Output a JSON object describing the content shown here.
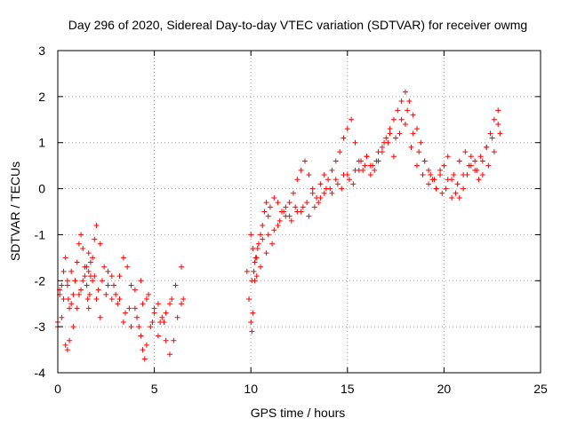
{
  "chart_data": {
    "type": "scatter",
    "title": "Day 296 of 2020, Sidereal Day-to-day VTEC variation (SDTVAR) for receiver owmg",
    "xlabel": "GPS time / hours",
    "ylabel": "SDTVAR / TECUs",
    "xlim": [
      0,
      25
    ],
    "ylim": [
      -4,
      3
    ],
    "xticks": [
      0,
      5,
      10,
      15,
      20,
      25
    ],
    "yticks": [
      -4,
      -3,
      -2,
      -1,
      0,
      1,
      2,
      3
    ],
    "grid": true,
    "marker": "+",
    "color": "#ff0000",
    "series": [
      {
        "name": "SDTVAR",
        "x": [
          0.0,
          0.1,
          0.2,
          0.3,
          0.4,
          0.5,
          0.55,
          0.6,
          0.7,
          0.8,
          0.9,
          1.0,
          1.1,
          1.2,
          1.3,
          1.4,
          1.5,
          1.55,
          1.6,
          1.65,
          1.7,
          1.8,
          1.9,
          2.0,
          2.2,
          2.4,
          2.6,
          2.8,
          3.0,
          3.2,
          3.4,
          3.6,
          3.8,
          4.0,
          4.2,
          4.3,
          4.4,
          4.5,
          4.6,
          4.8,
          5.0,
          5.2,
          5.4,
          5.6,
          5.8,
          6.0,
          6.2,
          6.4,
          6.5,
          0.0,
          0.2,
          0.4,
          0.5,
          0.6,
          0.8,
          1.0,
          1.2,
          1.4,
          1.6,
          1.8,
          2.0,
          2.2,
          2.5,
          2.8,
          3.1,
          3.4,
          3.7,
          4.0,
          4.3,
          4.6,
          4.9,
          5.2,
          5.5,
          5.8,
          6.1,
          6.4,
          0.1,
          0.3,
          0.5,
          0.7,
          0.9,
          1.1,
          1.3,
          1.5,
          1.6,
          1.7,
          1.9,
          2.1,
          2.3,
          2.6,
          2.9,
          3.2,
          3.5,
          3.8,
          4.1,
          4.4,
          4.7,
          5.0,
          5.3,
          5.6,
          5.9,
          9.8,
          9.9,
          10.0,
          10.05,
          10.1,
          10.2,
          10.3,
          10.4,
          10.5,
          10.6,
          10.7,
          10.8,
          10.9,
          11.0,
          11.2,
          11.4,
          11.6,
          11.8,
          12.0,
          12.2,
          12.4,
          12.6,
          12.8,
          13.0,
          13.2,
          13.4,
          13.6,
          13.8,
          14.0,
          14.2,
          14.4,
          14.6,
          14.8,
          15.0,
          15.2,
          15.4,
          15.6,
          15.8,
          16.0,
          16.2,
          16.4,
          16.6,
          16.8,
          17.0,
          17.2,
          17.4,
          17.6,
          17.8,
          18.0,
          18.2,
          18.4,
          18.6,
          18.8,
          19.0,
          19.2,
          19.4,
          19.6,
          19.8,
          20.0,
          20.2,
          20.4,
          20.6,
          20.8,
          21.0,
          21.2,
          21.4,
          21.6,
          21.8,
          22.0,
          22.2,
          22.4,
          22.6,
          22.8,
          10.0,
          10.1,
          10.2,
          10.3,
          10.5,
          10.8,
          11.1,
          11.4,
          11.7,
          12.0,
          12.3,
          12.6,
          12.9,
          13.2,
          13.5,
          13.8,
          14.1,
          14.4,
          14.7,
          15.0,
          15.3,
          15.6,
          15.9,
          16.2,
          16.5,
          16.8,
          17.1,
          17.4,
          17.7,
          18.0,
          18.3,
          18.6,
          18.9,
          19.2,
          19.5,
          19.8,
          20.1,
          20.4,
          20.7,
          21.0,
          21.3,
          21.6,
          21.9,
          22.2,
          22.5,
          22.8,
          10.05,
          10.15,
          10.25,
          10.35,
          10.6,
          10.9,
          11.2,
          11.5,
          11.8,
          12.1,
          12.4,
          12.7,
          13.0,
          13.3,
          13.6,
          13.9,
          14.2,
          14.5,
          14.8,
          15.1,
          15.4,
          15.7,
          16.0,
          16.3,
          16.6,
          16.9,
          17.2,
          17.5,
          17.8,
          18.1,
          18.4,
          18.7,
          19.0,
          19.3,
          19.6,
          19.9,
          20.2,
          20.5,
          20.8,
          21.1,
          21.4,
          21.7,
          22.0,
          22.3,
          22.6,
          22.9
        ],
        "y": [
          -2.9,
          -2.3,
          -2.1,
          -1.8,
          -1.5,
          -2.0,
          -2.4,
          -2.6,
          -2.5,
          -2.3,
          -2.0,
          -1.6,
          -1.2,
          -1.0,
          -1.3,
          -1.7,
          -2.1,
          -2.4,
          -2.6,
          -2.3,
          -1.9,
          -1.5,
          -1.1,
          -0.8,
          -1.2,
          -1.7,
          -2.1,
          -2.4,
          -2.3,
          -1.9,
          -1.5,
          -1.7,
          -2.1,
          -2.6,
          -3.0,
          -3.2,
          -3.5,
          -3.7,
          -3.4,
          -3.0,
          -2.7,
          -2.5,
          -2.8,
          -3.3,
          -3.6,
          -3.3,
          -2.8,
          -2.5,
          -2.4,
          -3.0,
          -2.8,
          -3.4,
          -3.5,
          -3.3,
          -3.0,
          -2.6,
          -2.2,
          -1.9,
          -1.8,
          -2.0,
          -2.4,
          -2.8,
          -2.3,
          -1.9,
          -2.5,
          -2.9,
          -2.6,
          -2.2,
          -2.0,
          -2.4,
          -2.9,
          -3.2,
          -2.9,
          -2.5,
          -2.1,
          -1.7,
          -2.2,
          -2.4,
          -2.1,
          -1.8,
          -2.0,
          -2.3,
          -2.0,
          -1.7,
          -1.4,
          -1.6,
          -1.9,
          -2.2,
          -2.0,
          -1.8,
          -2.1,
          -2.4,
          -2.7,
          -3.0,
          -2.8,
          -2.5,
          -2.3,
          -2.6,
          -2.9,
          -2.7,
          -2.4,
          -1.8,
          -2.4,
          -2.9,
          -3.1,
          -2.7,
          -2.0,
          -1.5,
          -1.2,
          -1.0,
          -0.8,
          -0.5,
          -0.3,
          -0.6,
          -0.4,
          -0.2,
          -0.3,
          -0.5,
          -0.4,
          -0.3,
          -0.1,
          0.2,
          0.4,
          0.6,
          0.3,
          0.0,
          -0.2,
          0.1,
          0.3,
          0.2,
          0.4,
          0.6,
          0.8,
          1.1,
          1.3,
          1.5,
          1.0,
          0.6,
          0.4,
          0.7,
          0.5,
          0.4,
          0.6,
          0.9,
          1.1,
          1.3,
          1.5,
          1.7,
          1.9,
          2.1,
          1.9,
          1.6,
          1.3,
          1.0,
          0.6,
          0.4,
          0.2,
          0.0,
          0.3,
          0.5,
          0.7,
          0.2,
          -0.1,
          -0.2,
          0.0,
          0.3,
          0.5,
          0.4,
          0.2,
          0.6,
          0.9,
          1.2,
          1.5,
          1.7,
          -1.0,
          -1.3,
          -1.6,
          -1.9,
          -1.7,
          -1.4,
          -1.2,
          -0.8,
          -0.5,
          -0.6,
          -0.4,
          -0.5,
          -0.3,
          -0.1,
          -0.3,
          -0.1,
          0.0,
          0.2,
          0.0,
          0.3,
          0.1,
          0.4,
          0.5,
          0.3,
          0.6,
          0.8,
          1.0,
          0.7,
          1.2,
          1.4,
          0.9,
          0.5,
          0.3,
          0.1,
          0.2,
          0.4,
          0.0,
          -0.2,
          0.1,
          0.3,
          0.5,
          0.6,
          0.7,
          0.9,
          1.1,
          1.4,
          -2.0,
          -1.8,
          -1.5,
          -1.3,
          -1.1,
          -1.0,
          -0.9,
          -0.7,
          -0.6,
          -0.7,
          -0.5,
          -0.4,
          -0.6,
          -0.4,
          -0.2,
          0.0,
          -0.1,
          0.1,
          0.3,
          0.2,
          0.4,
          0.6,
          0.7,
          0.5,
          0.8,
          1.0,
          1.2,
          1.1,
          1.5,
          1.7,
          1.2,
          0.8,
          0.6,
          0.3,
          0.0,
          -0.1,
          0.2,
          0.3,
          0.6,
          0.8,
          0.7,
          0.4,
          0.3,
          0.5,
          0.8,
          1.2
        ]
      }
    ]
  }
}
